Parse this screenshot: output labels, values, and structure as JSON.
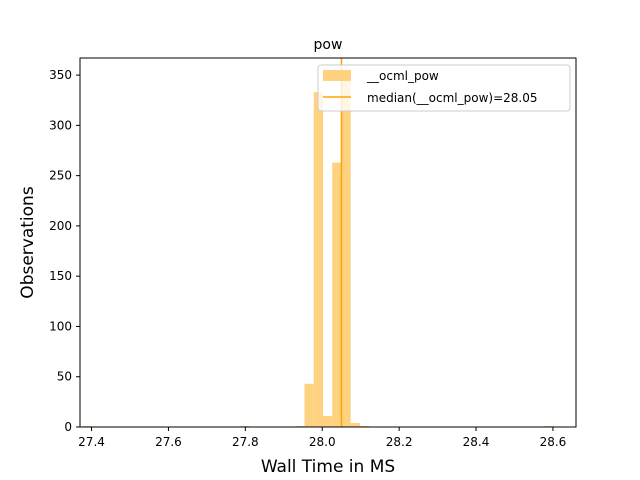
{
  "chart_data": {
    "type": "bar",
    "title": "pow",
    "xlabel": "Wall Time in MS",
    "ylabel": "Observations",
    "xlim": [
      27.37,
      28.66
    ],
    "ylim": [
      0,
      367
    ],
    "x_ticks": [
      "27.4",
      "27.6",
      "27.8",
      "28.0",
      "28.2",
      "28.4",
      "28.6"
    ],
    "y_ticks": [
      "0",
      "50",
      "100",
      "150",
      "200",
      "250",
      "300",
      "350"
    ],
    "bin_width": 0.024,
    "series": [
      {
        "name": "__ocml_pow",
        "color": "#ffd27f",
        "bins": [
          {
            "start": 27.378,
            "count": 1
          },
          {
            "start": 27.786,
            "count": 1
          },
          {
            "start": 27.93,
            "count": 1
          },
          {
            "start": 27.954,
            "count": 43
          },
          {
            "start": 27.978,
            "count": 333
          },
          {
            "start": 28.002,
            "count": 11
          },
          {
            "start": 28.026,
            "count": 263
          },
          {
            "start": 28.05,
            "count": 351
          },
          {
            "start": 28.074,
            "count": 4
          },
          {
            "start": 28.098,
            "count": 1
          },
          {
            "start": 28.578,
            "count": 1
          }
        ]
      }
    ],
    "median": {
      "label": "median(__ocml_pow)=28.05",
      "value": 28.05,
      "color": "#ffa500"
    },
    "legend": {
      "placement": "top-right",
      "entries": [
        "__ocml_pow",
        "median(__ocml_pow)=28.05"
      ]
    },
    "grid": false
  }
}
